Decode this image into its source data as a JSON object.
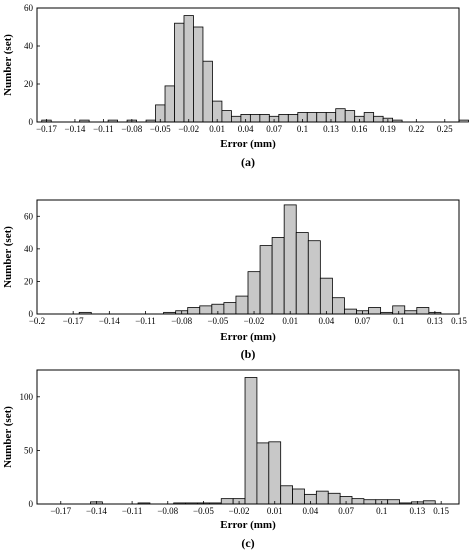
{
  "chart_data": [
    {
      "type": "bar",
      "panel_label": "(a)",
      "xlabel": "Error (mm)",
      "ylabel": "Number (set)",
      "xlim": [
        -0.18,
        0.265
      ],
      "ylim": [
        0,
        60
      ],
      "xticks": [
        -0.17,
        -0.14,
        -0.11,
        -0.08,
        -0.05,
        -0.02,
        0.01,
        0.04,
        0.07,
        0.1,
        0.13,
        0.16,
        0.19,
        0.22,
        0.25
      ],
      "xtick_labels": [
        "−0.17",
        "−0.14",
        "−0.11",
        "−0.08",
        "−0.05",
        "−0.02",
        "0.01",
        "0.04",
        "0.07",
        "0.1",
        "0.13",
        "0.16",
        "0.19",
        "0.22",
        "0.25"
      ],
      "yticks": [
        0,
        20,
        40,
        60
      ],
      "bin_start": -0.175,
      "bin_width": 0.01,
      "values": [
        1,
        0,
        0,
        0,
        1,
        0,
        0,
        1,
        0,
        1,
        0,
        1,
        9,
        19,
        52,
        56,
        50,
        32,
        11,
        6,
        3,
        4,
        4,
        4,
        3,
        4,
        4,
        5,
        5,
        5,
        5,
        7,
        6,
        3,
        5,
        3,
        2,
        1,
        0,
        0,
        0,
        0,
        0,
        0,
        1,
        0,
        1,
        0
      ]
    },
    {
      "type": "bar",
      "panel_label": "(b)",
      "xlabel": "Error (mm)",
      "ylabel": "Number (set)",
      "xlim": [
        -0.2,
        0.15
      ],
      "ylim": [
        0,
        70
      ],
      "xticks": [
        -0.2,
        -0.17,
        -0.14,
        -0.11,
        -0.08,
        -0.05,
        -0.02,
        0.01,
        0.04,
        0.07,
        0.1,
        0.13,
        0.15
      ],
      "xtick_labels": [
        "−0.2",
        "−0.17",
        "−0.14",
        "−0.11",
        "−0.08",
        "−0.05",
        "−0.02",
        "0.01",
        "0.04",
        "0.07",
        "0.1",
        "0.13",
        "0.15"
      ],
      "yticks": [
        0,
        20,
        40,
        60
      ],
      "bin_start": -0.095,
      "bin_width": 0.01,
      "extra_bins": [
        {
          "x": -0.165,
          "value": 1
        }
      ],
      "values": [
        1,
        2,
        4,
        5,
        6,
        7,
        11,
        26,
        42,
        47,
        67,
        50,
        45,
        22,
        10,
        3,
        2,
        4,
        1,
        5,
        2,
        4,
        1
      ]
    },
    {
      "type": "bar",
      "panel_label": "(c)",
      "xlabel": "Error (mm)",
      "ylabel": "Number (set)",
      "xlim": [
        -0.19,
        0.165
      ],
      "ylim": [
        0,
        125
      ],
      "xticks": [
        -0.17,
        -0.14,
        -0.11,
        -0.08,
        -0.05,
        -0.02,
        0.01,
        0.04,
        0.07,
        0.1,
        0.13,
        0.15
      ],
      "xtick_labels": [
        "−0.17",
        "−0.14",
        "−0.11",
        "−0.08",
        "−0.05",
        "−0.02",
        "0.01",
        "0.04",
        "0.07",
        "0.1",
        "0.13",
        "0.15"
      ],
      "yticks": [
        0,
        50,
        100
      ],
      "bin_start": -0.145,
      "bin_width": 0.01,
      "values": [
        2,
        0,
        0,
        0,
        1,
        0,
        0,
        1,
        1,
        1,
        1,
        5,
        5,
        118,
        57,
        58,
        17,
        14,
        9,
        12,
        10,
        7,
        5,
        4,
        4,
        4,
        1,
        2,
        3
      ]
    }
  ]
}
